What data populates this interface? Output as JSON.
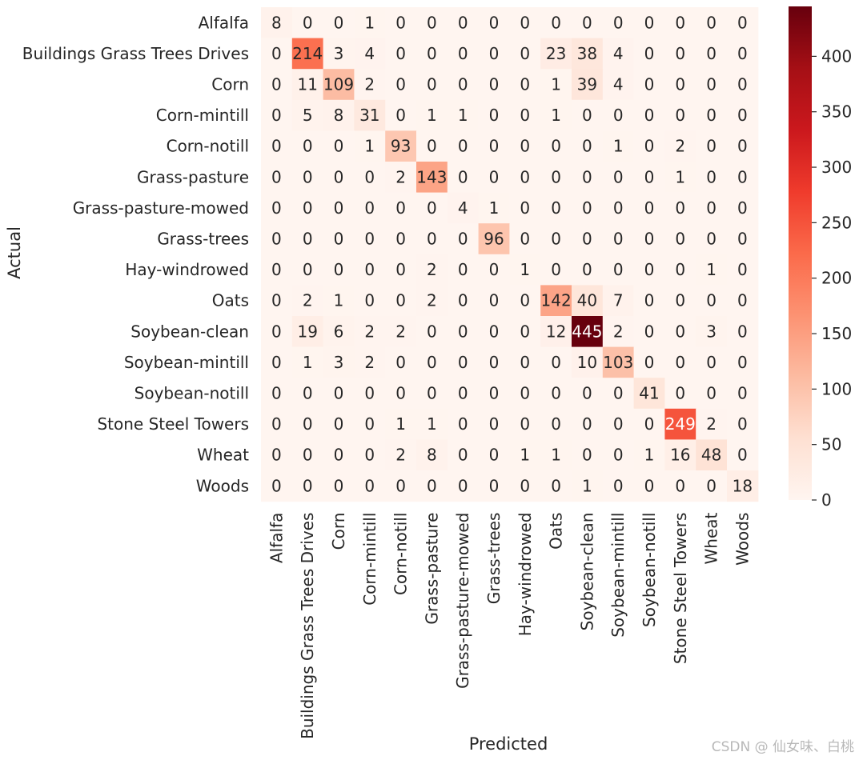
{
  "chart_data": {
    "type": "heatmap",
    "xlabel": "Predicted",
    "ylabel": "Actual",
    "categories": [
      "Alfalfa",
      "Buildings Grass Trees Drives",
      "Corn",
      "Corn-mintill",
      "Corn-notill",
      "Grass-pasture",
      "Grass-pasture-mowed",
      "Grass-trees",
      "Hay-windrowed",
      "Oats",
      "Soybean-clean",
      "Soybean-mintill",
      "Soybean-notill",
      "Stone Steel Towers",
      "Wheat",
      "Woods"
    ],
    "matrix": [
      [
        8,
        0,
        0,
        1,
        0,
        0,
        0,
        0,
        0,
        0,
        0,
        0,
        0,
        0,
        0,
        0
      ],
      [
        0,
        214,
        3,
        4,
        0,
        0,
        0,
        0,
        0,
        23,
        38,
        4,
        0,
        0,
        0,
        0
      ],
      [
        0,
        11,
        109,
        2,
        0,
        0,
        0,
        0,
        0,
        1,
        39,
        4,
        0,
        0,
        0,
        0
      ],
      [
        0,
        5,
        8,
        31,
        0,
        1,
        1,
        0,
        0,
        1,
        0,
        0,
        0,
        0,
        0,
        0
      ],
      [
        0,
        0,
        0,
        1,
        93,
        0,
        0,
        0,
        0,
        0,
        0,
        1,
        0,
        2,
        0,
        0
      ],
      [
        0,
        0,
        0,
        0,
        2,
        143,
        0,
        0,
        0,
        0,
        0,
        0,
        0,
        1,
        0,
        0
      ],
      [
        0,
        0,
        0,
        0,
        0,
        0,
        4,
        1,
        0,
        0,
        0,
        0,
        0,
        0,
        0,
        0
      ],
      [
        0,
        0,
        0,
        0,
        0,
        0,
        0,
        96,
        0,
        0,
        0,
        0,
        0,
        0,
        0,
        0
      ],
      [
        0,
        0,
        0,
        0,
        0,
        2,
        0,
        0,
        1,
        0,
        0,
        0,
        0,
        0,
        1,
        0
      ],
      [
        0,
        2,
        1,
        0,
        0,
        2,
        0,
        0,
        0,
        142,
        40,
        7,
        0,
        0,
        0,
        0
      ],
      [
        0,
        19,
        6,
        2,
        2,
        0,
        0,
        0,
        0,
        12,
        445,
        2,
        0,
        0,
        3,
        0
      ],
      [
        0,
        1,
        3,
        2,
        0,
        0,
        0,
        0,
        0,
        0,
        10,
        103,
        0,
        0,
        0,
        0
      ],
      [
        0,
        0,
        0,
        0,
        0,
        0,
        0,
        0,
        0,
        0,
        0,
        0,
        41,
        0,
        0,
        0
      ],
      [
        0,
        0,
        0,
        0,
        1,
        1,
        0,
        0,
        0,
        0,
        0,
        0,
        0,
        249,
        2,
        0
      ],
      [
        0,
        0,
        0,
        0,
        2,
        8,
        0,
        0,
        1,
        1,
        0,
        0,
        1,
        16,
        48,
        0
      ],
      [
        0,
        0,
        0,
        0,
        0,
        0,
        0,
        0,
        0,
        0,
        1,
        0,
        0,
        0,
        0,
        18
      ]
    ],
    "colormap": "Reds",
    "vmin": 0,
    "vmax": 445,
    "colorbar_ticks": [
      0,
      50,
      100,
      150,
      200,
      250,
      300,
      350,
      400
    ],
    "grid": false
  },
  "watermark": "CSDN @ 仙女味、白桃"
}
